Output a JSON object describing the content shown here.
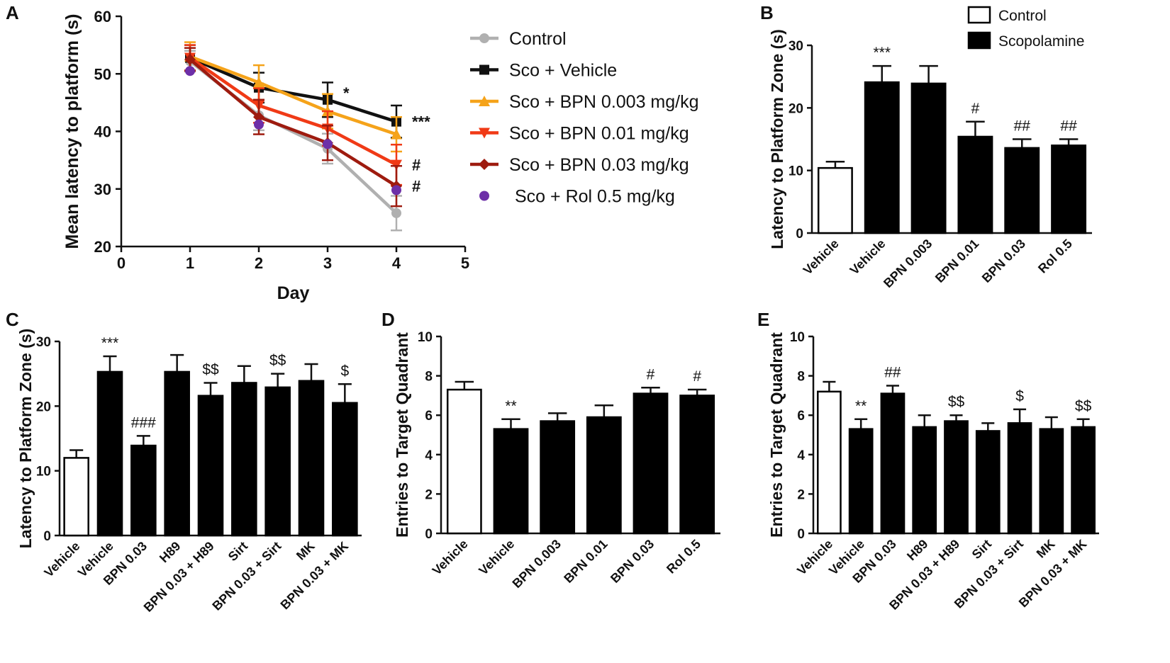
{
  "colors": {
    "control": "#b0b0b0",
    "sco_vehicle": "#111111",
    "bpn_0003": "#f5a31a",
    "bpn_001": "#f03a16",
    "bpn_003": "#9e1b0f",
    "rol": "#6d2fa8"
  },
  "chart_data": [
    {
      "panel": "A",
      "type": "line",
      "title": "",
      "xlabel": "Day",
      "ylabel": "Mean latency to platform (s)",
      "xlim": [
        0,
        5
      ],
      "ylim": [
        20,
        60
      ],
      "xticks": [
        "0",
        "1",
        "2",
        "3",
        "4",
        "5"
      ],
      "yticks": [
        "20",
        "30",
        "40",
        "50",
        "60"
      ],
      "x": [
        1,
        2,
        3,
        4
      ],
      "series": [
        {
          "name": "Control",
          "color_key": "control",
          "marker": "circle",
          "values": [
            52.2,
            42.8,
            37.0,
            25.8
          ],
          "err": [
            1.8,
            2.6,
            2.6,
            3.0
          ]
        },
        {
          "name": "Sco + Vehicle",
          "color_key": "sco_vehicle",
          "marker": "square",
          "values": [
            52.8,
            47.6,
            45.5,
            41.7
          ],
          "err": [
            2.2,
            2.6,
            3.0,
            2.8
          ]
        },
        {
          "name": "Sco + BPN 0.003 mg/kg",
          "color_key": "bpn_0003",
          "marker": "triangle-up",
          "values": [
            53.0,
            48.5,
            43.5,
            39.5
          ],
          "err": [
            2.5,
            3.0,
            3.0,
            3.0
          ]
        },
        {
          "name": "Sco + BPN 0.01 mg/kg",
          "color_key": "bpn_001",
          "marker": "triangle-down",
          "values": [
            52.8,
            44.5,
            40.5,
            34.2
          ],
          "err": [
            2.2,
            3.0,
            3.0,
            3.5
          ]
        },
        {
          "name": "Sco + BPN 0.03 mg/kg",
          "color_key": "bpn_003",
          "marker": "diamond",
          "values": [
            52.5,
            42.5,
            38.0,
            30.5
          ],
          "err": [
            2.0,
            3.0,
            3.0,
            3.5
          ]
        },
        {
          "name": "Sco + Rol 0.5 mg/kg",
          "color_key": "rol",
          "marker": "circle",
          "points_only": true,
          "values": [
            50.5,
            41.2,
            37.8,
            29.8
          ],
          "err": [
            0,
            0,
            0,
            0
          ]
        }
      ],
      "annotations": [
        {
          "x": 3,
          "text": "*",
          "anchor_value": 45.5
        },
        {
          "x": 4,
          "text": "***",
          "anchor_value": 41.7
        },
        {
          "x": 4,
          "text": "#",
          "anchor_value": 34.2
        },
        {
          "x": 4,
          "text": "#",
          "anchor_value": 30.5
        }
      ]
    },
    {
      "panel": "B",
      "type": "bar",
      "xlabel": "",
      "ylabel": "Latency to Platform Zone (s)",
      "ylim": [
        0,
        30
      ],
      "yticks": [
        "0",
        "10",
        "20",
        "30"
      ],
      "categories": [
        "Vehicle",
        "Vehicle",
        "BPN 0.003",
        "BPN 0.01",
        "BPN 0.03",
        "Rol 0.5"
      ],
      "values": [
        10.4,
        24.1,
        23.9,
        15.4,
        13.6,
        14.0
      ],
      "err": [
        1.0,
        2.6,
        2.8,
        2.4,
        1.4,
        1.0
      ],
      "fills": [
        "open",
        "solid",
        "solid",
        "solid",
        "solid",
        "solid"
      ],
      "annotations": [
        "",
        "***",
        "",
        "#",
        "##",
        "##"
      ],
      "legend": [
        {
          "label": "Control",
          "fill": "open"
        },
        {
          "label": "Scopolamine",
          "fill": "solid"
        }
      ]
    },
    {
      "panel": "C",
      "type": "bar",
      "xlabel": "",
      "ylabel": "Latency to Platform Zone (s)",
      "ylim": [
        0,
        30
      ],
      "yticks": [
        "0",
        "10",
        "20",
        "30"
      ],
      "categories": [
        "Vehicle",
        "Vehicle",
        "BPN 0.03",
        "H89",
        "BPN 0.03 + H89",
        "Sirt",
        "BPN 0.03 + Sirt",
        "MK",
        "BPN 0.03 + MK"
      ],
      "values": [
        12.0,
        25.3,
        13.9,
        25.3,
        21.6,
        23.6,
        22.9,
        23.9,
        20.5
      ],
      "err": [
        1.2,
        2.4,
        1.5,
        2.6,
        2.0,
        2.6,
        2.1,
        2.6,
        2.9
      ],
      "fills": [
        "open",
        "solid",
        "solid",
        "solid",
        "solid",
        "solid",
        "solid",
        "solid",
        "solid"
      ],
      "annotations": [
        "",
        "***",
        "###",
        "",
        "$$",
        "",
        "$$",
        "",
        "$"
      ]
    },
    {
      "panel": "D",
      "type": "bar",
      "xlabel": "",
      "ylabel": "Entries to Target Quadrant",
      "ylim": [
        0,
        10
      ],
      "yticks": [
        "0",
        "2",
        "4",
        "6",
        "8",
        "10"
      ],
      "categories": [
        "Vehicle",
        "Vehicle",
        "BPN 0.003",
        "BPN 0.01",
        "BPN 0.03",
        "Rol 0.5"
      ],
      "values": [
        7.3,
        5.3,
        5.7,
        5.9,
        7.1,
        7.0
      ],
      "err": [
        0.4,
        0.5,
        0.4,
        0.6,
        0.3,
        0.3
      ],
      "fills": [
        "open",
        "solid",
        "solid",
        "solid",
        "solid",
        "solid"
      ],
      "annotations": [
        "",
        "**",
        "",
        "",
        "#",
        "#"
      ]
    },
    {
      "panel": "E",
      "type": "bar",
      "xlabel": "",
      "ylabel": "Entries to Target Quadrant",
      "ylim": [
        0,
        10
      ],
      "yticks": [
        "0",
        "2",
        "4",
        "6",
        "8",
        "10"
      ],
      "categories": [
        "Vehicle",
        "Vehicle",
        "BPN 0.03",
        "H89",
        "BPN 0.03 + H89",
        "Sirt",
        "BPN 0.03 + Sirt",
        "MK",
        "BPN 0.03 + MK"
      ],
      "values": [
        7.2,
        5.3,
        7.1,
        5.4,
        5.7,
        5.2,
        5.6,
        5.3,
        5.4
      ],
      "err": [
        0.5,
        0.5,
        0.4,
        0.6,
        0.3,
        0.4,
        0.7,
        0.6,
        0.4
      ],
      "fills": [
        "open",
        "solid",
        "solid",
        "solid",
        "solid",
        "solid",
        "solid",
        "solid",
        "solid"
      ],
      "annotations": [
        "",
        "**",
        "##",
        "",
        "$$",
        "",
        "$",
        "",
        "$$"
      ]
    }
  ]
}
